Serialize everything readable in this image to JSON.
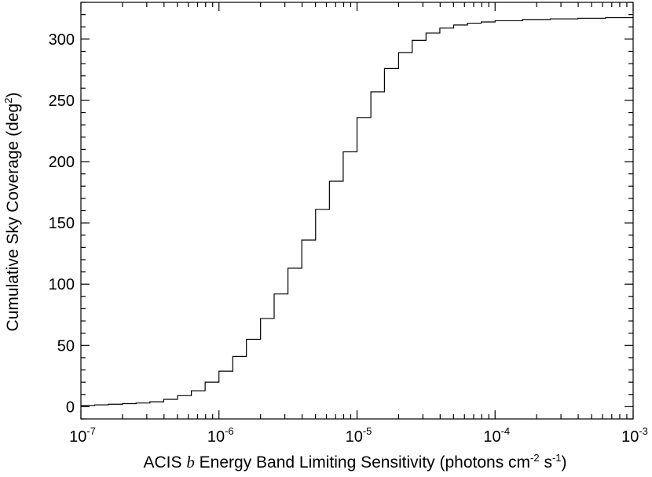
{
  "chart_data": {
    "type": "line",
    "step": true,
    "xscale": "log",
    "xlim": [
      1e-07,
      0.001
    ],
    "ylim": [
      -10,
      330
    ],
    "xlabel": {
      "prefix": "ACIS ",
      "italic": "b",
      "middle": " Energy Band Limiting Sensitivity (photons cm",
      "sup1": "-2",
      "mid2": " s",
      "sup2": "-1",
      "suffix": ")"
    },
    "ylabel": {
      "main": "Cumulative Sky Coverage (deg",
      "sup": "2",
      "suffix": ")"
    },
    "x_ticks": [
      {
        "value": 1e-07,
        "base": "10",
        "exp": "-7"
      },
      {
        "value": 1e-06,
        "base": "10",
        "exp": "-6"
      },
      {
        "value": 1e-05,
        "base": "10",
        "exp": "-5"
      },
      {
        "value": 0.0001,
        "base": "10",
        "exp": "-4"
      },
      {
        "value": 0.001,
        "base": "10",
        "exp": "-3"
      }
    ],
    "y_ticks": [
      0,
      50,
      100,
      150,
      200,
      250,
      300
    ],
    "y_minor_step": 10,
    "series": [
      {
        "x": [
          1e-07,
          1.26e-07,
          1.58e-07,
          2e-07,
          2.51e-07,
          3.16e-07,
          3.98e-07,
          5.01e-07,
          6.31e-07,
          7.94e-07,
          1e-06,
          1.26e-06,
          1.58e-06,
          2e-06,
          2.51e-06,
          3.16e-06,
          3.98e-06,
          5.01e-06,
          6.31e-06,
          7.94e-06,
          1e-05,
          1.26e-05,
          1.58e-05,
          2e-05,
          2.51e-05,
          3.16e-05,
          3.98e-05,
          5.01e-05,
          6.31e-05,
          7.94e-05,
          0.0001,
          0.000158,
          0.000251,
          0.000398,
          0.000631,
          0.001
        ],
        "y": [
          1,
          1.5,
          2,
          2.5,
          3,
          4,
          6,
          9,
          13,
          20,
          29,
          41,
          55,
          72,
          92,
          113,
          136,
          161,
          184,
          208,
          236,
          257,
          276,
          289,
          299,
          305,
          309,
          311.5,
          313,
          314,
          315,
          316,
          316.5,
          317,
          317.5,
          318
        ]
      }
    ]
  }
}
